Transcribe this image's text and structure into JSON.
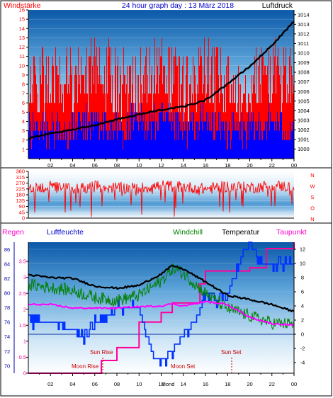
{
  "header": {
    "title": "24 hour graph day : 13 März 2018",
    "left_label": "Windstärke",
    "right_label": "Luftdruck"
  },
  "legend": {
    "regen": "Regen",
    "luftfeuchte": "Luftfeuchte",
    "windchill": "Windchill",
    "temperatur": "Temperatur",
    "taupunkt": "Taupunkt"
  },
  "compass": [
    "N",
    "W",
    "S",
    "O",
    "N"
  ],
  "annotations": {
    "sun_rise": "Sun Rise",
    "moon_rise": "Moon Rise",
    "moon_set": "Moon Set",
    "sun_set": "Sun Set",
    "mond_stamp": "Mond"
  },
  "colors": {
    "wind_gust": "#ff0000",
    "wind_avg": "#0000ff",
    "pressure": "#000000",
    "direction": "#ff0000",
    "humidity": "#0000ff",
    "windchill": "#008000",
    "temperature": "#000000",
    "dewpoint": "#ff00ff",
    "rain": "#ff0099"
  },
  "chart_data": [
    {
      "type": "bar",
      "title": "24 hour graph day : 13 März 2018",
      "x_ticks": [
        "02",
        "04",
        "06",
        "08",
        "10",
        "12",
        "14",
        "16",
        "18",
        "20",
        "22",
        "00"
      ],
      "left_axis": {
        "label": "Windstärke",
        "min": 0,
        "max": 16,
        "ticks": [
          1,
          2,
          3,
          4,
          5,
          6,
          7,
          8,
          9,
          10,
          11,
          12,
          13,
          14,
          15,
          16
        ]
      },
      "right_axis": {
        "label": "Luftdruck",
        "min": 999,
        "max": 1014.5,
        "ticks": [
          1000,
          1001,
          1002,
          1003,
          1004,
          1005,
          1006,
          1007,
          1008,
          1009,
          1010,
          1011,
          1012,
          1013,
          1014
        ]
      },
      "series": [
        {
          "name": "",
          "type": "bar",
          "axis": "left",
          "x": [
            0,
            2,
            4,
            6,
            8,
            10,
            12,
            14,
            16,
            18,
            20,
            22,
            24
          ],
          "values": [
            7,
            8,
            8,
            9,
            8,
            8,
            9,
            7,
            9,
            7,
            8,
            9,
            8
          ]
        },
        {
          "name": "",
          "type": "bar",
          "axis": "left",
          "x": [
            0,
            2,
            4,
            6,
            8,
            10,
            12,
            14,
            16,
            18,
            20,
            22,
            24
          ],
          "values": [
            3,
            3,
            3,
            4,
            3,
            4,
            4,
            3,
            4,
            3,
            3,
            4,
            3
          ]
        },
        {
          "name": "",
          "type": "line",
          "axis": "right",
          "x": [
            0,
            2,
            4,
            6,
            8,
            10,
            12,
            14,
            16,
            18,
            20,
            22,
            24
          ],
          "values": [
            1001.1,
            1001.6,
            1002.0,
            1002.5,
            1003.1,
            1003.6,
            1004.1,
            1004.4,
            1005.1,
            1006.8,
            1008.6,
            1010.8,
            1013.3
          ]
        }
      ]
    },
    {
      "type": "line",
      "x_ticks": [],
      "left_axis": {
        "min": 0,
        "max": 360,
        "ticks": [
          0,
          45,
          90,
          135,
          180,
          225,
          270,
          315,
          360
        ]
      },
      "series": [
        {
          "name": "",
          "x": [
            0,
            2,
            4,
            6,
            8,
            10,
            12,
            14,
            16,
            18,
            20,
            22,
            24
          ],
          "values": [
            230,
            240,
            225,
            245,
            235,
            230,
            250,
            240,
            225,
            245,
            235,
            250,
            240
          ]
        }
      ]
    },
    {
      "type": "line",
      "x_ticks": [
        "02",
        "04",
        "06",
        "08",
        "10",
        "12",
        "14",
        "16",
        "18",
        "20",
        "22",
        "00"
      ],
      "left_axis_humidity": {
        "label": "Luftfeuchte",
        "min": 69,
        "max": 87,
        "ticks": [
          70,
          72,
          74,
          76,
          78,
          80,
          82,
          84,
          86
        ]
      },
      "left_axis_rain": {
        "label": "Regen",
        "min": 0,
        "max": 4.1,
        "ticks": [
          0,
          0.5,
          1,
          1.5,
          2,
          2.5,
          3,
          3.5
        ]
      },
      "right_axis": {
        "min": -5.5,
        "max": 13,
        "ticks": [
          -4,
          -2,
          0,
          2,
          4,
          6,
          8,
          10,
          12
        ]
      },
      "series": [
        {
          "name": "Temperatur",
          "axis": "right",
          "x": [
            0,
            2,
            4,
            6,
            8,
            10,
            12,
            13,
            14,
            16,
            18,
            20,
            22,
            24
          ],
          "values": [
            8.4,
            8.0,
            7.9,
            6.8,
            6.5,
            6.9,
            8.5,
            9.7,
            9.2,
            7.4,
            5.5,
            4.9,
            4.2,
            3.2
          ]
        },
        {
          "name": "Windchill",
          "axis": "right",
          "x": [
            0,
            2,
            4,
            6,
            8,
            10,
            12,
            13,
            14,
            16,
            18,
            20,
            22,
            24
          ],
          "values": [
            7.0,
            6.6,
            6.2,
            5.2,
            4.8,
            5.5,
            7.5,
            9.3,
            8.6,
            5.8,
            3.6,
            2.6,
            1.6,
            1.4
          ]
        },
        {
          "name": "Taupunkt",
          "axis": "right",
          "x": [
            0,
            2,
            4,
            6,
            8,
            10,
            12,
            13,
            14,
            16,
            18,
            20,
            22,
            24
          ],
          "values": [
            4.2,
            4.2,
            3.7,
            3.7,
            3.7,
            3.9,
            4.0,
            4.3,
            4.0,
            4.6,
            4.2,
            2.4,
            1.5,
            1.3
          ]
        },
        {
          "name": "Luftfeuchte",
          "axis": "left_humidity",
          "x": [
            0,
            2,
            4,
            5,
            6,
            8,
            10,
            11,
            12,
            13,
            14,
            15,
            16,
            17,
            18,
            19,
            20,
            21,
            22,
            24
          ],
          "values": [
            76,
            76,
            75,
            74,
            76,
            78,
            78,
            72,
            70,
            72,
            74,
            76,
            80,
            79,
            80,
            84,
            87,
            84,
            84,
            84
          ]
        },
        {
          "name": "Regen",
          "axis": "left_rain",
          "x": [
            0,
            6.2,
            6.6,
            8,
            10,
            12,
            13,
            15.5,
            16,
            18,
            20,
            21.5,
            24
          ],
          "values": [
            0,
            0,
            0.4,
            0.8,
            1.6,
            1.9,
            2.2,
            2.8,
            3.2,
            3.2,
            3.3,
            3.9,
            4.1
          ]
        }
      ]
    }
  ]
}
